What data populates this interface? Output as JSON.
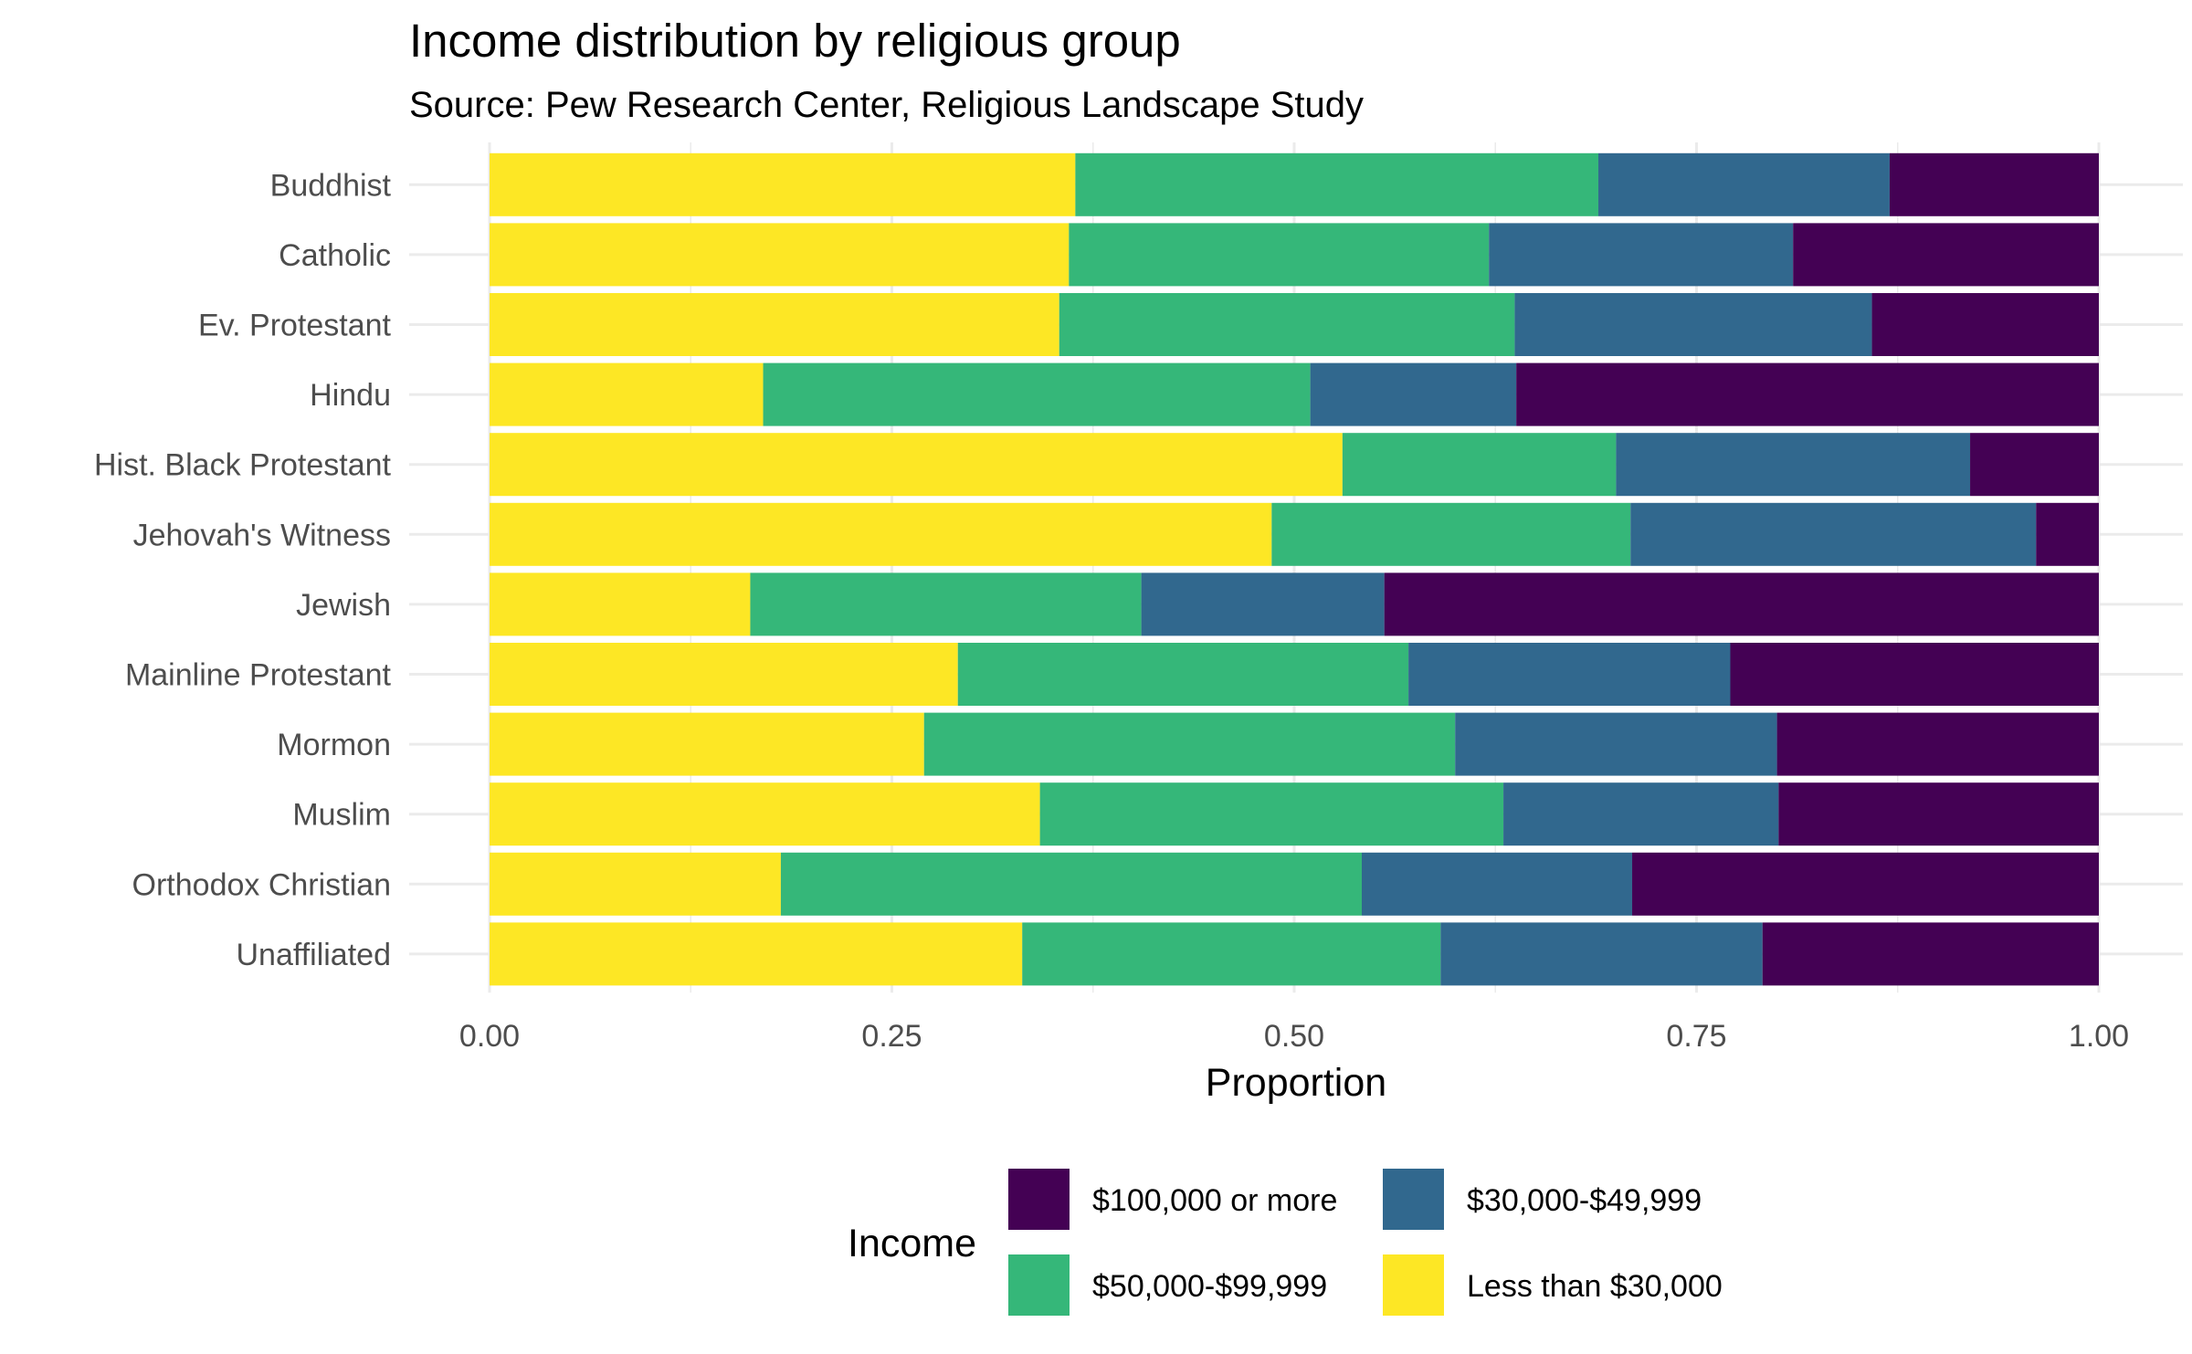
{
  "chart_data": {
    "type": "bar",
    "orientation": "horizontal",
    "stacked": "proportion",
    "title": "Income distribution by religious group",
    "subtitle": "Source: Pew Research Center, Religious Landscape Study",
    "xlabel": "Proportion",
    "ylabel": "",
    "xlim": [
      0,
      1
    ],
    "xticks": [
      "0.00",
      "0.25",
      "0.50",
      "0.75",
      "1.00"
    ],
    "grid": true,
    "legend_position": "bottom",
    "legend_title": "Income",
    "categories": [
      "Buddhist",
      "Catholic",
      "Ev. Protestant",
      "Hindu",
      "Hist. Black Protestant",
      "Jehovah's Witness",
      "Jewish",
      "Mainline Protestant",
      "Mormon",
      "Muslim",
      "Orthodox Christian",
      "Unaffiliated"
    ],
    "series": [
      {
        "name": "Less than $30,000",
        "color": "#FDE725",
        "values": [
          0.364,
          0.36,
          0.354,
          0.17,
          0.53,
          0.486,
          0.162,
          0.291,
          0.27,
          0.342,
          0.181,
          0.331
        ]
      },
      {
        "name": "$50,000-$99,999",
        "color": "#35B779",
        "values": [
          0.325,
          0.261,
          0.283,
          0.34,
          0.17,
          0.223,
          0.243,
          0.28,
          0.33,
          0.288,
          0.361,
          0.26
        ]
      },
      {
        "name": "$30,000-$49,999",
        "color": "#31688E",
        "values": [
          0.181,
          0.189,
          0.222,
          0.128,
          0.22,
          0.252,
          0.151,
          0.2,
          0.2,
          0.171,
          0.168,
          0.2
        ]
      },
      {
        "name": "$100,000 or more",
        "color": "#440154",
        "values": [
          0.13,
          0.19,
          0.141,
          0.362,
          0.08,
          0.039,
          0.444,
          0.229,
          0.2,
          0.199,
          0.29,
          0.209
        ]
      }
    ],
    "legend_order": [
      "$100,000 or more",
      "$30,000-$49,999",
      "$50,000-$99,999",
      "Less than $30,000"
    ],
    "colors": {
      "grid": "#EBEBEB",
      "background": "#FFFFFF"
    }
  }
}
